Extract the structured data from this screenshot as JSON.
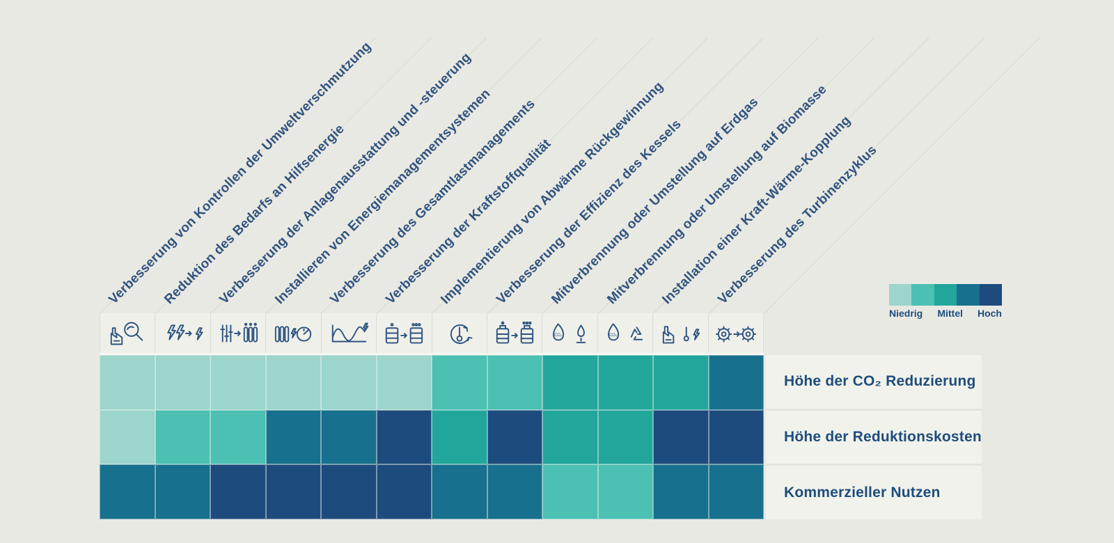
{
  "colors": {
    "background": "#e9e9e4",
    "icon_band_background": "#f0f0ea",
    "label_band_background": "#f2f2ec",
    "text_navy": "#1d4d7d",
    "column_label_navy": "#30537e",
    "icon_stroke": "#2d5380",
    "diagonal_line": "#d9d9d2",
    "palette": [
      "#9bd5cb",
      "#4bc0b3",
      "#22a69b",
      "#17708d",
      "#1d4b7d"
    ]
  },
  "legend": {
    "labels": [
      "Niedrig",
      "Mittel",
      "Hoch"
    ],
    "swatch_colors": [
      "#9bd5cb",
      "#4bc0b3",
      "#22a69b",
      "#17708d",
      "#1d4b7d"
    ]
  },
  "columns": [
    {
      "label": "Verbesserung von Kontrollen der Umweltverschmutzung",
      "icon": "pollution-control-inspection-icon"
    },
    {
      "label": "Reduktion des Bedarfs an Hilfsenergie",
      "icon": "auxiliary-energy-reduction-icon"
    },
    {
      "label": "Verbesserung der Anlagenausstattung und -steuerung",
      "icon": "equipment-and-controls-icon"
    },
    {
      "label": "Installieren von Energiemanagementsystemen",
      "icon": "energy-management-system-icon"
    },
    {
      "label": "Verbesserung des Gesamtlastmanagements",
      "icon": "load-management-icon"
    },
    {
      "label": "Verbesserung der Kraftstoffqualität",
      "icon": "fuel-quality-icon"
    },
    {
      "label": "Implementierung von Abwärme Rückgewinnung",
      "icon": "waste-heat-recovery-icon"
    },
    {
      "label": "Verbesserung der Effizienz des Kessels",
      "icon": "boiler-efficiency-icon"
    },
    {
      "label": "Mitverbrennung oder Umstellung auf Erdgas",
      "icon": "natural-gas-cofiring-icon"
    },
    {
      "label": "Mitverbrennung oder Umstellung auf Biomasse",
      "icon": "biomass-cofiring-icon"
    },
    {
      "label": "Installation einer Kraft-Wärme-Kopplung",
      "icon": "combined-heat-power-icon"
    },
    {
      "label": "Verbesserung des Turbinenzyklus",
      "icon": "turbine-cycle-icon"
    }
  ],
  "rows": [
    {
      "label": "Höhe der CO₂ Reduzierung"
    },
    {
      "label": "Höhe der Reduktionskosten"
    },
    {
      "label": "Kommerzieller Nutzen"
    }
  ],
  "chart_data": {
    "type": "heatmap",
    "title": "",
    "x_categories": [
      "Verbesserung von Kontrollen der Umweltverschmutzung",
      "Reduktion des Bedarfs an Hilfsenergie",
      "Verbesserung der Anlagenausstattung und -steuerung",
      "Installieren von Energiemanagementsystemen",
      "Verbesserung des Gesamtlastmanagements",
      "Verbesserung der Kraftstoffqualität",
      "Implementierung von Abwärme Rückgewinnung",
      "Verbesserung der Effizienz des Kessels",
      "Mitverbrennung oder Umstellung auf Erdgas",
      "Mitverbrennung oder Umstellung auf Biomasse",
      "Installation einer Kraft-Wärme-Kopplung",
      "Verbesserung des Turbinenzyklus"
    ],
    "y_categories": [
      "Höhe der CO₂ Reduzierung",
      "Höhe der Reduktionskosten",
      "Kommerzieller Nutzen"
    ],
    "scale": {
      "min": 1,
      "max": 5,
      "min_label": "Niedrig",
      "mid_label": "Mittel",
      "max_label": "Hoch"
    },
    "values": [
      [
        1,
        1,
        1,
        1,
        1,
        1,
        2,
        2,
        3,
        3,
        3,
        4
      ],
      [
        1,
        2,
        2,
        4,
        4,
        5,
        3,
        5,
        3,
        3,
        5,
        5
      ],
      [
        4,
        4,
        5,
        5,
        5,
        5,
        4,
        4,
        2,
        2,
        4,
        4
      ]
    ],
    "legend_position": "top-right",
    "grid": true
  }
}
